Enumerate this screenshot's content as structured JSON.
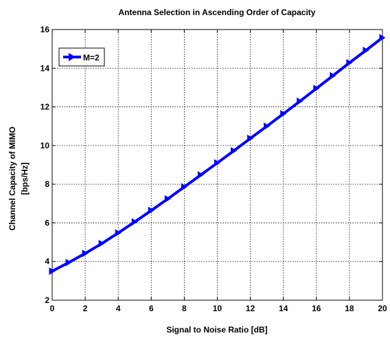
{
  "chart_data": {
    "type": "line",
    "title": "Antenna Selection in Ascending Order of Capacity",
    "xlabel": "Signal to Noise Ratio [dB]",
    "ylabel_line1": "Channel Capacity of MIMO",
    "ylabel_line2": "[bps/Hz]",
    "xlim": [
      0,
      20
    ],
    "ylim": [
      2,
      16
    ],
    "xticks": [
      "0",
      "2",
      "4",
      "6",
      "8",
      "10",
      "12",
      "14",
      "16",
      "18",
      "20"
    ],
    "yticks": [
      "2",
      "4",
      "6",
      "8",
      "10",
      "12",
      "14",
      "16"
    ],
    "grid": true,
    "legend_position": "top-left",
    "series": [
      {
        "name": "M=2",
        "color": "#0000ff",
        "marker": "right-triangle",
        "x": [
          0,
          1,
          2,
          3,
          4,
          5,
          6,
          7,
          8,
          9,
          10,
          11,
          12,
          13,
          14,
          15,
          16,
          17,
          18,
          19,
          20
        ],
        "y": [
          3.5,
          3.95,
          4.42,
          4.93,
          5.48,
          6.05,
          6.64,
          7.24,
          7.86,
          8.48,
          9.1,
          9.73,
          10.37,
          11.0,
          11.64,
          12.29,
          12.95,
          13.61,
          14.28,
          14.92,
          15.58
        ]
      }
    ]
  }
}
